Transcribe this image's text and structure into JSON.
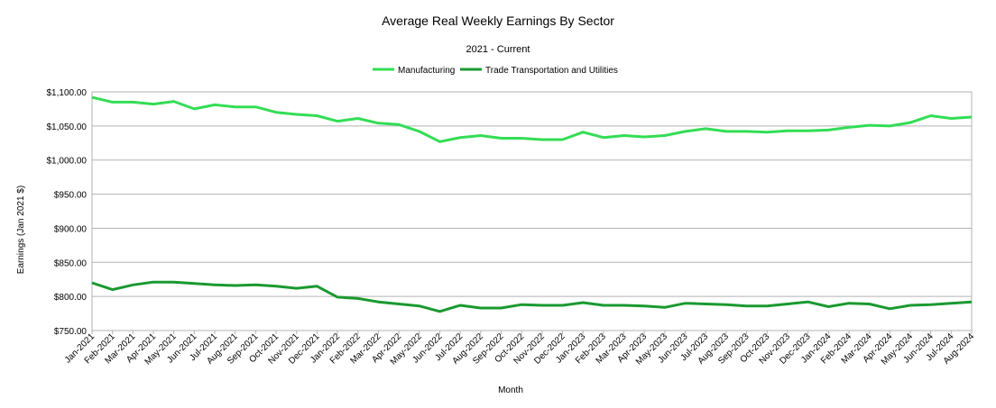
{
  "chart_data": {
    "type": "line",
    "title": "Average Real Weekly Earnings By Sector",
    "subtitle": "2021 - Current",
    "xlabel": "Month",
    "ylabel": "Earnings (Jan 2021 $)",
    "ylim": [
      750,
      1100
    ],
    "ytick_values": [
      750,
      800,
      850,
      900,
      950,
      1000,
      1050,
      1100
    ],
    "ytick_labels": [
      "$750.00",
      "$800.00",
      "$850.00",
      "$900.00",
      "$950.00",
      "$1,000.00",
      "$1,050.00",
      "$1,100.00"
    ],
    "grid": true,
    "legend_position": "top-center",
    "categories": [
      "Jan-2021",
      "Feb-2021",
      "Mar-2021",
      "Apr-2021",
      "May-2021",
      "Jun-2021",
      "Jul-2021",
      "Aug-2021",
      "Sep-2021",
      "Oct-2021",
      "Nov-2021",
      "Dec-2021",
      "Jan-2022",
      "Feb-2022",
      "Mar-2022",
      "Apr-2022",
      "May-2022",
      "Jun-2022",
      "Jul-2022",
      "Aug-2022",
      "Sep-2022",
      "Oct-2022",
      "Nov-2022",
      "Dec-2022",
      "Jan-2023",
      "Feb-2023",
      "Mar-2023",
      "Apr-2023",
      "May-2023",
      "Jun-2023",
      "Jul-2023",
      "Aug-2023",
      "Sep-2023",
      "Oct-2023",
      "Nov-2023",
      "Dec-2023",
      "Jan-2024",
      "Feb-2024",
      "Mar-2024",
      "Apr-2024",
      "May-2024",
      "Jun-2024",
      "Jul-2024",
      "Aug-2024"
    ],
    "series": [
      {
        "name": "Manufacturing",
        "color": "#33dd55",
        "values": [
          1092,
          1085,
          1085,
          1082,
          1086,
          1075,
          1081,
          1078,
          1078,
          1070,
          1067,
          1065,
          1057,
          1061,
          1054,
          1052,
          1042,
          1027,
          1033,
          1036,
          1032,
          1032,
          1030,
          1030,
          1041,
          1033,
          1036,
          1034,
          1036,
          1042,
          1046,
          1042,
          1042,
          1041,
          1043,
          1043,
          1044,
          1048,
          1051,
          1050,
          1055,
          1065,
          1061,
          1063
        ]
      },
      {
        "name": "Trade Transportation and Utilities",
        "color": "#1a9930",
        "values": [
          820,
          810,
          817,
          821,
          821,
          819,
          817,
          816,
          817,
          815,
          812,
          815,
          799,
          797,
          792,
          789,
          786,
          778,
          787,
          783,
          783,
          788,
          787,
          787,
          791,
          787,
          787,
          786,
          784,
          790,
          789,
          788,
          786,
          786,
          789,
          792,
          785,
          790,
          789,
          782,
          787,
          788,
          790,
          792
        ]
      }
    ]
  }
}
